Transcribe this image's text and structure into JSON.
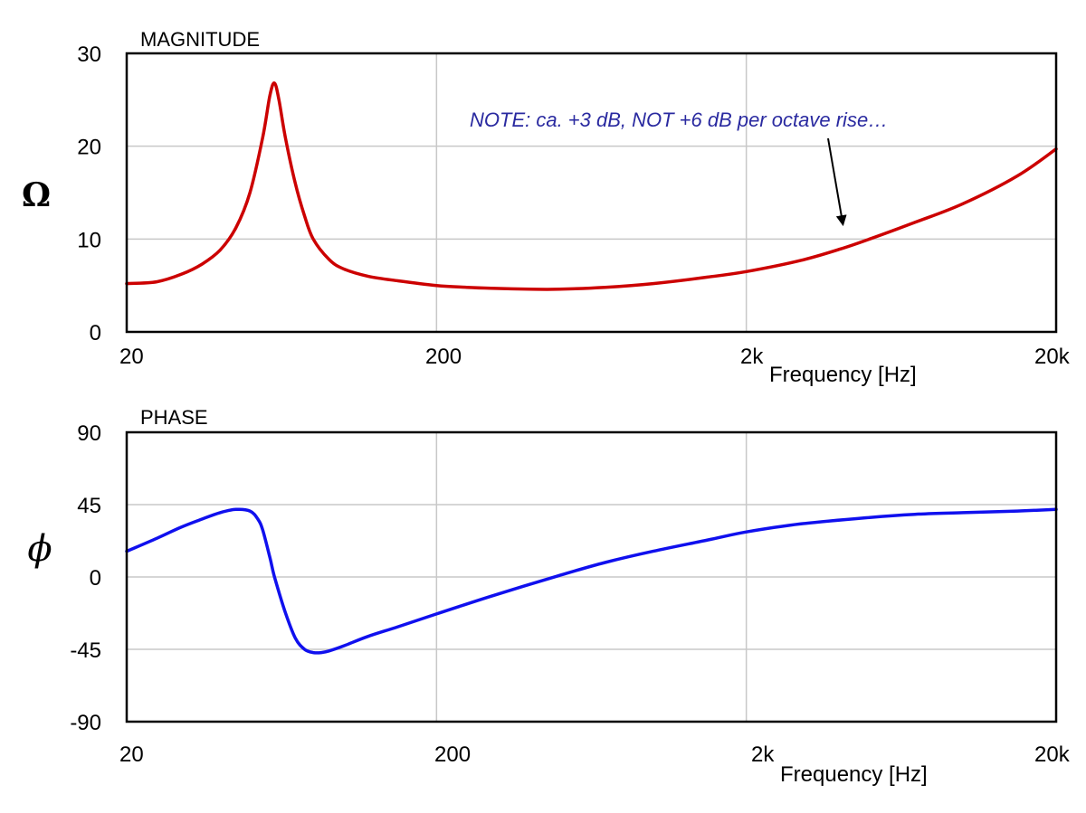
{
  "chart_data": [
    {
      "type": "line",
      "title": "MAGNITUDE",
      "xlabel": "Frequency [Hz]",
      "ylabel": "Ω",
      "xscale": "log",
      "xlim": [
        20,
        20000
      ],
      "ylim": [
        0,
        30
      ],
      "xticks": [
        20,
        200,
        2000,
        20000
      ],
      "xtick_labels": [
        "20",
        "200",
        "2k",
        "20k"
      ],
      "yticks": [
        0,
        10,
        20,
        30
      ],
      "ytick_labels": [
        "0",
        "10",
        "20",
        "30"
      ],
      "grid": true,
      "series": [
        {
          "color": "#cc0000",
          "x": [
            20,
            25,
            30,
            35,
            40,
            45,
            50,
            55,
            58,
            60,
            62,
            65,
            70,
            75,
            80,
            90,
            100,
            120,
            150,
            200,
            250,
            300,
            400,
            500,
            700,
            1000,
            1500,
            2000,
            3000,
            4000,
            5000,
            7000,
            10000,
            15000,
            20000
          ],
          "y": [
            5.2,
            5.4,
            6.2,
            7.3,
            8.8,
            11.2,
            15.0,
            21.0,
            25.5,
            26.8,
            25.0,
            21.0,
            16.0,
            12.5,
            10.0,
            7.8,
            6.8,
            6.0,
            5.5,
            5.0,
            4.8,
            4.7,
            4.6,
            4.6,
            4.8,
            5.2,
            5.9,
            6.5,
            7.7,
            8.9,
            10.0,
            11.8,
            13.8,
            16.8,
            19.7
          ]
        }
      ],
      "annotations": [
        {
          "text": "NOTE: ca. +3 dB, NOT +6 dB per octave rise…",
          "color": "#2a2aa0",
          "points_to": {
            "x": 4100,
            "y": 11.0
          }
        }
      ]
    },
    {
      "type": "line",
      "title": "PHASE",
      "xlabel": "Frequency [Hz]",
      "ylabel": "ϕ",
      "xscale": "log",
      "xlim": [
        20,
        20000
      ],
      "ylim": [
        -90,
        90
      ],
      "xticks": [
        20,
        200,
        2000,
        20000
      ],
      "xtick_labels": [
        "20",
        "200",
        "2k",
        "20k"
      ],
      "yticks": [
        -90,
        -45,
        0,
        45,
        90
      ],
      "ytick_labels": [
        "-90",
        "-45",
        "0",
        "45",
        "90"
      ],
      "grid": true,
      "series": [
        {
          "color": "#1010ee",
          "x": [
            20,
            25,
            30,
            35,
            40,
            45,
            50,
            53,
            55,
            58,
            60,
            65,
            70,
            75,
            80,
            85,
            90,
            100,
            120,
            150,
            200,
            300,
            500,
            700,
            1000,
            1500,
            2000,
            3000,
            5000,
            7000,
            10000,
            15000,
            20000
          ],
          "y": [
            16,
            24,
            31,
            36,
            40,
            42,
            41,
            36,
            29,
            12,
            0,
            -22,
            -38,
            -45,
            -47,
            -47,
            -46,
            -43,
            -37,
            -31,
            -23,
            -12,
            1,
            9,
            16,
            23,
            28,
            33,
            37,
            39,
            40,
            41,
            42
          ]
        }
      ],
      "annotations": []
    }
  ]
}
